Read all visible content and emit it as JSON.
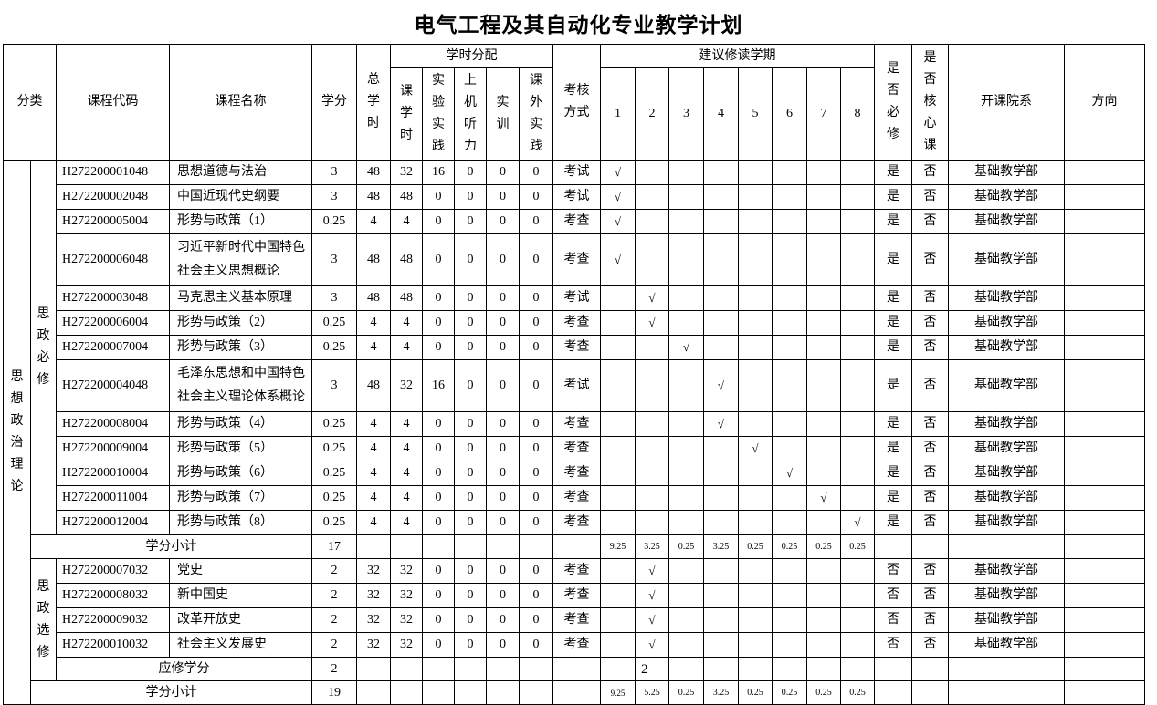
{
  "title": "电气工程及其自动化专业教学计划",
  "headers": {
    "category": "分类",
    "code": "课程代码",
    "name": "课程名称",
    "credits": "学分",
    "total_hours": "总学时",
    "hours_group": "学时分配",
    "lecture": "课学时",
    "lab": "实验实践",
    "computer": "上机听力",
    "training": "实训",
    "extra": "课外实践",
    "exam": "考核方式",
    "semester_group": "建议修读学期",
    "semesters": [
      "1",
      "2",
      "3",
      "4",
      "5",
      "6",
      "7",
      "8"
    ],
    "required": "是否必修",
    "core": "是否核心课",
    "department": "开课院系",
    "direction": "方向"
  },
  "category": "思想政治理论",
  "groups": [
    {
      "label": "思政必修",
      "courses": [
        {
          "code": "H272200001048",
          "name": "思想道德与法治",
          "credits": "3",
          "total": "48",
          "lecture": "32",
          "lab": "16",
          "computer": "0",
          "training": "0",
          "extra": "0",
          "exam": "考试",
          "semester": 1,
          "required": "是",
          "core": "否",
          "dept": "基础教学部"
        },
        {
          "code": "H272200002048",
          "name": "中国近现代史纲要",
          "credits": "3",
          "total": "48",
          "lecture": "48",
          "lab": "0",
          "computer": "0",
          "training": "0",
          "extra": "0",
          "exam": "考试",
          "semester": 1,
          "required": "是",
          "core": "否",
          "dept": "基础教学部"
        },
        {
          "code": "H272200005004",
          "name": "形势与政策（1）",
          "credits": "0.25",
          "total": "4",
          "lecture": "4",
          "lab": "0",
          "computer": "0",
          "training": "0",
          "extra": "0",
          "exam": "考查",
          "semester": 1,
          "required": "是",
          "core": "否",
          "dept": "基础教学部"
        },
        {
          "code": "H272200006048",
          "name": "习近平新时代中国特色社会主义思想概论",
          "credits": "3",
          "total": "48",
          "lecture": "48",
          "lab": "0",
          "computer": "0",
          "training": "0",
          "extra": "0",
          "exam": "考查",
          "semester": 1,
          "required": "是",
          "core": "否",
          "dept": "基础教学部",
          "tall": true
        },
        {
          "code": "H272200003048",
          "name": "马克思主义基本原理",
          "credits": "3",
          "total": "48",
          "lecture": "48",
          "lab": "0",
          "computer": "0",
          "training": "0",
          "extra": "0",
          "exam": "考试",
          "semester": 2,
          "required": "是",
          "core": "否",
          "dept": "基础教学部"
        },
        {
          "code": "H272200006004",
          "name": "形势与政策（2）",
          "credits": "0.25",
          "total": "4",
          "lecture": "4",
          "lab": "0",
          "computer": "0",
          "training": "0",
          "extra": "0",
          "exam": "考查",
          "semester": 2,
          "required": "是",
          "core": "否",
          "dept": "基础教学部"
        },
        {
          "code": "H272200007004",
          "name": "形势与政策（3）",
          "credits": "0.25",
          "total": "4",
          "lecture": "4",
          "lab": "0",
          "computer": "0",
          "training": "0",
          "extra": "0",
          "exam": "考查",
          "semester": 3,
          "required": "是",
          "core": "否",
          "dept": "基础教学部"
        },
        {
          "code": "H272200004048",
          "name": "毛泽东思想和中国特色社会主义理论体系概论",
          "credits": "3",
          "total": "48",
          "lecture": "32",
          "lab": "16",
          "computer": "0",
          "training": "0",
          "extra": "0",
          "exam": "考试",
          "semester": 4,
          "required": "是",
          "core": "否",
          "dept": "基础教学部",
          "tall": true
        },
        {
          "code": "H272200008004",
          "name": "形势与政策（4）",
          "credits": "0.25",
          "total": "4",
          "lecture": "4",
          "lab": "0",
          "computer": "0",
          "training": "0",
          "extra": "0",
          "exam": "考查",
          "semester": 4,
          "required": "是",
          "core": "否",
          "dept": "基础教学部"
        },
        {
          "code": "H272200009004",
          "name": "形势与政策（5）",
          "credits": "0.25",
          "total": "4",
          "lecture": "4",
          "lab": "0",
          "computer": "0",
          "training": "0",
          "extra": "0",
          "exam": "考查",
          "semester": 5,
          "required": "是",
          "core": "否",
          "dept": "基础教学部"
        },
        {
          "code": "H272200010004",
          "name": "形势与政策（6）",
          "credits": "0.25",
          "total": "4",
          "lecture": "4",
          "lab": "0",
          "computer": "0",
          "training": "0",
          "extra": "0",
          "exam": "考查",
          "semester": 6,
          "required": "是",
          "core": "否",
          "dept": "基础教学部"
        },
        {
          "code": "H272200011004",
          "name": "形势与政策（7）",
          "credits": "0.25",
          "total": "4",
          "lecture": "4",
          "lab": "0",
          "computer": "0",
          "training": "0",
          "extra": "0",
          "exam": "考查",
          "semester": 7,
          "required": "是",
          "core": "否",
          "dept": "基础教学部"
        },
        {
          "code": "H272200012004",
          "name": "形势与政策（8）",
          "credits": "0.25",
          "total": "4",
          "lecture": "4",
          "lab": "0",
          "computer": "0",
          "training": "0",
          "extra": "0",
          "exam": "考查",
          "semester": 8,
          "required": "是",
          "core": "否",
          "dept": "基础教学部"
        }
      ],
      "subtotal": {
        "label": "学分小计",
        "credits": "17",
        "semesters": [
          "9.25",
          "3.25",
          "0.25",
          "3.25",
          "0.25",
          "0.25",
          "0.25",
          "0.25"
        ]
      }
    },
    {
      "label": "思政选修",
      "courses": [
        {
          "code": "H272200007032",
          "name": "党史",
          "credits": "2",
          "total": "32",
          "lecture": "32",
          "lab": "0",
          "computer": "0",
          "training": "0",
          "extra": "0",
          "exam": "考查",
          "semester": 2,
          "required": "否",
          "core": "否",
          "dept": "基础教学部"
        },
        {
          "code": "H272200008032",
          "name": "新中国史",
          "credits": "2",
          "total": "32",
          "lecture": "32",
          "lab": "0",
          "computer": "0",
          "training": "0",
          "extra": "0",
          "exam": "考查",
          "semester": 2,
          "required": "否",
          "core": "否",
          "dept": "基础教学部"
        },
        {
          "code": "H272200009032",
          "name": "改革开放史",
          "credits": "2",
          "total": "32",
          "lecture": "32",
          "lab": "0",
          "computer": "0",
          "training": "0",
          "extra": "0",
          "exam": "考查",
          "semester": 2,
          "required": "否",
          "core": "否",
          "dept": "基础教学部"
        },
        {
          "code": "H272200010032",
          "name": "社会主义发展史",
          "credits": "2",
          "total": "32",
          "lecture": "32",
          "lab": "0",
          "computer": "0",
          "training": "0",
          "extra": "0",
          "exam": "考查",
          "semester": 2,
          "required": "否",
          "core": "否",
          "dept": "基础教学部"
        }
      ],
      "required_credits": {
        "label": "应修学分",
        "credits": "2",
        "semester_value": "2",
        "semester": 2
      }
    }
  ],
  "total": {
    "label": "学分小计",
    "credits": "19",
    "semesters": [
      "9.25",
      "5.25",
      "0.25",
      "3.25",
      "0.25",
      "0.25",
      "0.25",
      "0.25"
    ]
  },
  "check_mark": "√"
}
